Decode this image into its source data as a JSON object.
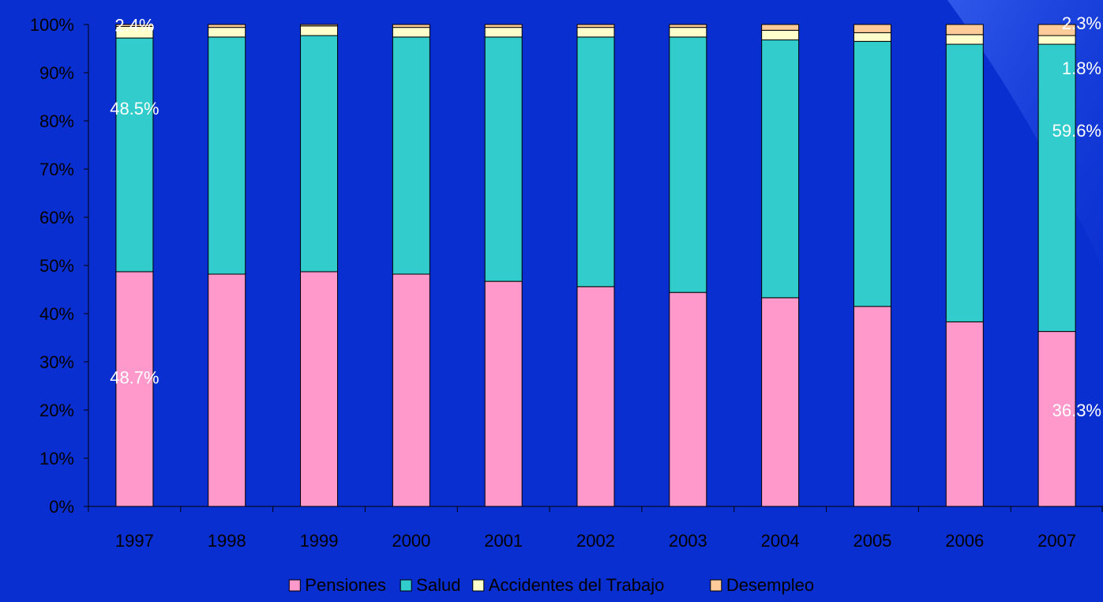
{
  "chart_data": {
    "type": "bar",
    "stacked": true,
    "percent_scale": true,
    "categories": [
      "1997",
      "1998",
      "1999",
      "2000",
      "2001",
      "2002",
      "2003",
      "2004",
      "2005",
      "2006",
      "2007"
    ],
    "series": [
      {
        "name": "Pensiones",
        "color": "#ff99cc",
        "values": [
          48.7,
          48.2,
          48.7,
          48.2,
          46.7,
          45.6,
          44.4,
          43.3,
          41.5,
          38.3,
          36.3
        ]
      },
      {
        "name": "Salud",
        "color": "#33cccc",
        "values": [
          48.5,
          49.2,
          49.0,
          49.2,
          50.7,
          51.8,
          53.0,
          53.5,
          55.0,
          57.6,
          59.6
        ]
      },
      {
        "name": "Accidentes del Trabajo",
        "color": "#ffffcc",
        "values": [
          2.4,
          2.0,
          2.0,
          2.0,
          2.0,
          2.0,
          2.0,
          2.0,
          1.8,
          2.0,
          1.8
        ]
      },
      {
        "name": "Desempleo",
        "color": "#ffcc99",
        "values": [
          0.4,
          0.6,
          0.3,
          0.6,
          0.6,
          0.6,
          0.6,
          1.2,
          1.7,
          2.1,
          2.3
        ]
      }
    ],
    "ylim": [
      0,
      100
    ],
    "yticks": [
      "0%",
      "10%",
      "20%",
      "30%",
      "40%",
      "50%",
      "60%",
      "70%",
      "80%",
      "90%",
      "100%"
    ],
    "data_labels": [
      {
        "category": "1997",
        "series": "Accidentes del Trabajo",
        "text": "2.4%"
      },
      {
        "category": "1997",
        "series": "Salud",
        "text": "48.5%"
      },
      {
        "category": "1997",
        "series": "Pensiones",
        "text": "48.7%"
      },
      {
        "category": "2007",
        "series": "Desempleo",
        "text": "2.3%"
      },
      {
        "category": "2007",
        "series": "Accidentes del Trabajo",
        "text": "1.8%"
      },
      {
        "category": "2007",
        "series": "Salud",
        "text": "59.6%"
      },
      {
        "category": "2007",
        "series": "Pensiones",
        "text": "36.3%"
      }
    ],
    "legend_position": "bottom",
    "grid": false
  },
  "colors": {
    "background": "#0a2fd0",
    "axis": "#000000",
    "bar_outline": "#000000",
    "label_text": "#ffffff"
  }
}
